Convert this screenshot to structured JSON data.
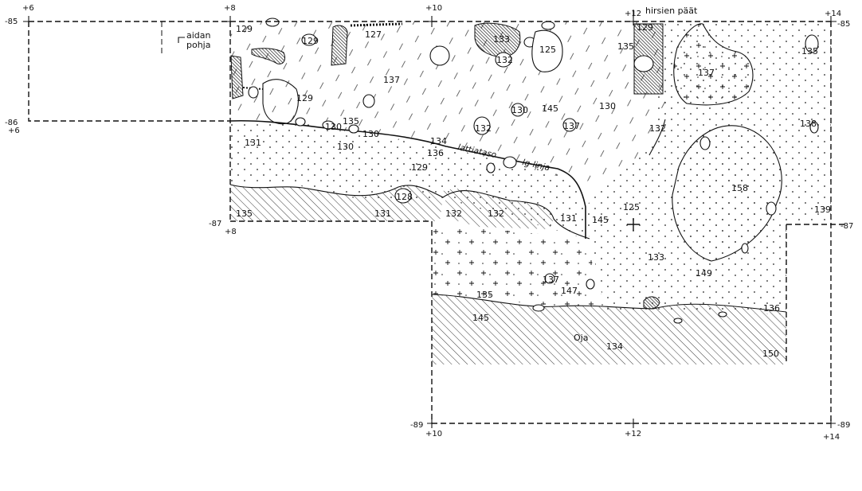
{
  "coords": {
    "top": [
      "+6",
      "+8",
      "+10",
      "+12",
      "+14"
    ],
    "rows": [
      "-85",
      "-86",
      "-87",
      "-89"
    ],
    "left_mid": "+6",
    "row87_left": "+8",
    "bottom": [
      "+10",
      "+12",
      "+14"
    ]
  },
  "annotations": {
    "hirsien": "hirsien päät",
    "aidan": "aidan",
    "pohja": "pohja",
    "lattiataso": "lattiataso",
    "linja": "lg-linja",
    "oja": "Oja"
  },
  "layers": {
    "l129a": "129",
    "l129b": "129",
    "l129c": "129",
    "l129d": "129",
    "l127": "127",
    "l133a": "133",
    "l132a": "132",
    "l125a": "125",
    "l135a": "135",
    "l135b": "135",
    "l137a": "137",
    "l130a": "130",
    "l145a": "145",
    "l130b": "130",
    "l132b": "132",
    "l137b": "137",
    "l137c": "137",
    "l132c": "132",
    "l136a": "136",
    "l138a": "138",
    "l131a": "131",
    "l130c": "130",
    "l130d": "130",
    "l134a": "134",
    "l130e": "130",
    "l135c": "135",
    "l129e": "129",
    "l128a": "128",
    "l158a": "158",
    "l135d": "135",
    "l131b": "131",
    "l132d": "132",
    "l132e": "132",
    "l131c": "131",
    "l145b": "145",
    "l125b": "125",
    "l139a": "139",
    "l133b": "133",
    "l149a": "149",
    "l137d": "137",
    "l135e": "135",
    "l147a": "147",
    "l145c": "145",
    "l134b": "134",
    "l136b": "136",
    "l150a": "150"
  }
}
